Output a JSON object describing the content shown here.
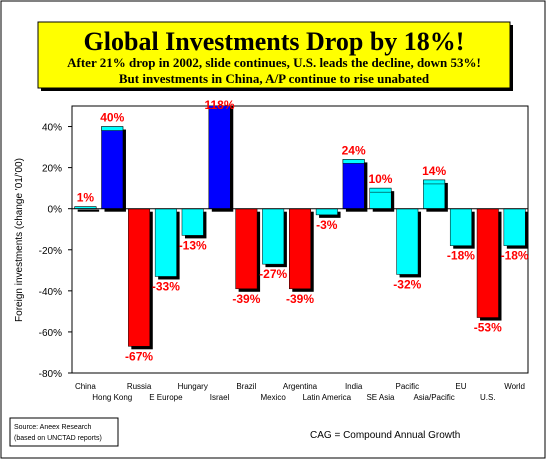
{
  "chart_data": {
    "type": "bar",
    "title": "Global Investments Drop by 18%!",
    "subtitle": [
      "After 21% drop in 2002, slide continues, U.S. leads the decline, down 53%!",
      "But investments in China, A/P continue to rise unabated"
    ],
    "y_label": "Foreign investments (change '01/'00)",
    "categories": [
      "China",
      "Hong Kong",
      "Russia",
      "E Europe",
      "Hungary",
      "Israel",
      "Brazil",
      "Mexico",
      "Argentina",
      "Latin America",
      "India",
      "SE Asia",
      "Pacific",
      "Asia/Pacific",
      "EU",
      "U.S.",
      "World"
    ],
    "values": [
      1,
      40,
      -67,
      -33,
      -13,
      118,
      -39,
      -27,
      -39,
      -3,
      24,
      10,
      -32,
      14,
      -18,
      -53,
      -18
    ],
    "value_labels": [
      "1%",
      "40%",
      "-67%",
      "-33%",
      "-13%",
      "118%",
      "-39%",
      "-27%",
      "-39%",
      "-3%",
      "24%",
      "10%",
      "-32%",
      "14%",
      "-18%",
      "-53%",
      "-18%"
    ],
    "colors": [
      "#00ffff",
      "#0000ff",
      "#ff0000",
      "#00ffff",
      "#00ffff",
      "#0000ff",
      "#ff0000",
      "#00ffff",
      "#ff0000",
      "#00ffff",
      "#0000ff",
      "#00ffff",
      "#00ffff",
      "#00ffff",
      "#00ffff",
      "#ff0000",
      "#00ffff"
    ],
    "ylim": [
      -80,
      50
    ],
    "yticks": [
      {
        "value": -80,
        "label": "-80%"
      },
      {
        "value": -60,
        "label": "-60%"
      },
      {
        "value": -40,
        "label": "-40%"
      },
      {
        "value": -20,
        "label": "-20%"
      },
      {
        "value": 0,
        "label": "0%"
      },
      {
        "value": 20,
        "label": "20%"
      },
      {
        "value": 40,
        "label": "40%"
      }
    ],
    "source": [
      "Source: Aneex Research",
      "(based on UNCTAD reports)"
    ],
    "note": "CAG = Compound Annual Growth"
  }
}
